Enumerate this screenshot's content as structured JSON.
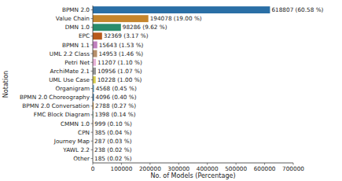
{
  "chart_data": {
    "type": "bar",
    "orientation": "horizontal",
    "x_label": "No. of Models (Percentage)",
    "y_label": "Notation",
    "categories": [
      "BPMN 2.0",
      "Value Chain",
      "DMN 1.0",
      "EPC",
      "BPMN 1.1",
      "UML 2.2 Class",
      "Petri Net",
      "ArchiMate 2.1",
      "UML Use Case",
      "Organigram",
      "BPMN 2.0 Choreography",
      "BPMN 2.0 Conversation",
      "FMC Block Diagram",
      "CMMN 1.0",
      "CPN",
      "Journey Map",
      "YAWL 2.2",
      "Other"
    ],
    "values": [
      618807,
      194078,
      98286,
      32369,
      15643,
      14953,
      11207,
      10956,
      10228,
      4568,
      4096,
      2788,
      1398,
      999,
      385,
      287,
      238,
      185
    ],
    "value_labels": [
      "618807 (60.58 %)",
      "194078 (19.00 %)",
      "98286 (9.62 %)",
      "32369 (3.17 %)",
      "15643 (1.53 %)",
      "14953 (1.46 %)",
      "11207 (1.10 %)",
      "10956 (1.07 %)",
      "10228 (1.00 %)",
      "4568 (0.45 %)",
      "4096 (0.40 %)",
      "2788 (0.27 %)",
      "1398 (0.14 %)",
      "999 (0.10 %)",
      "385 (0.04 %)",
      "287 (0.03 %)",
      "238 (0.02 %)",
      "185 (0.02 %)"
    ],
    "colors": [
      "#2a6fa6",
      "#c5852c",
      "#2a8c6c",
      "#b85a1c",
      "#c07fbe",
      "#b78f6a",
      "#e8b2d8",
      "#969696",
      "#d7cd4f",
      "#6aaed6",
      "#2a6fa6",
      "#c5852c",
      "#2a8c6c",
      "#b85a1c",
      "#c07fbe",
      "#b78f6a",
      "#e8b2d8",
      "#969696"
    ],
    "xlim": [
      0,
      700000
    ],
    "xticks": [
      0,
      100000,
      200000,
      300000,
      400000,
      500000,
      600000,
      700000
    ],
    "data_labels": true,
    "grid": false
  }
}
